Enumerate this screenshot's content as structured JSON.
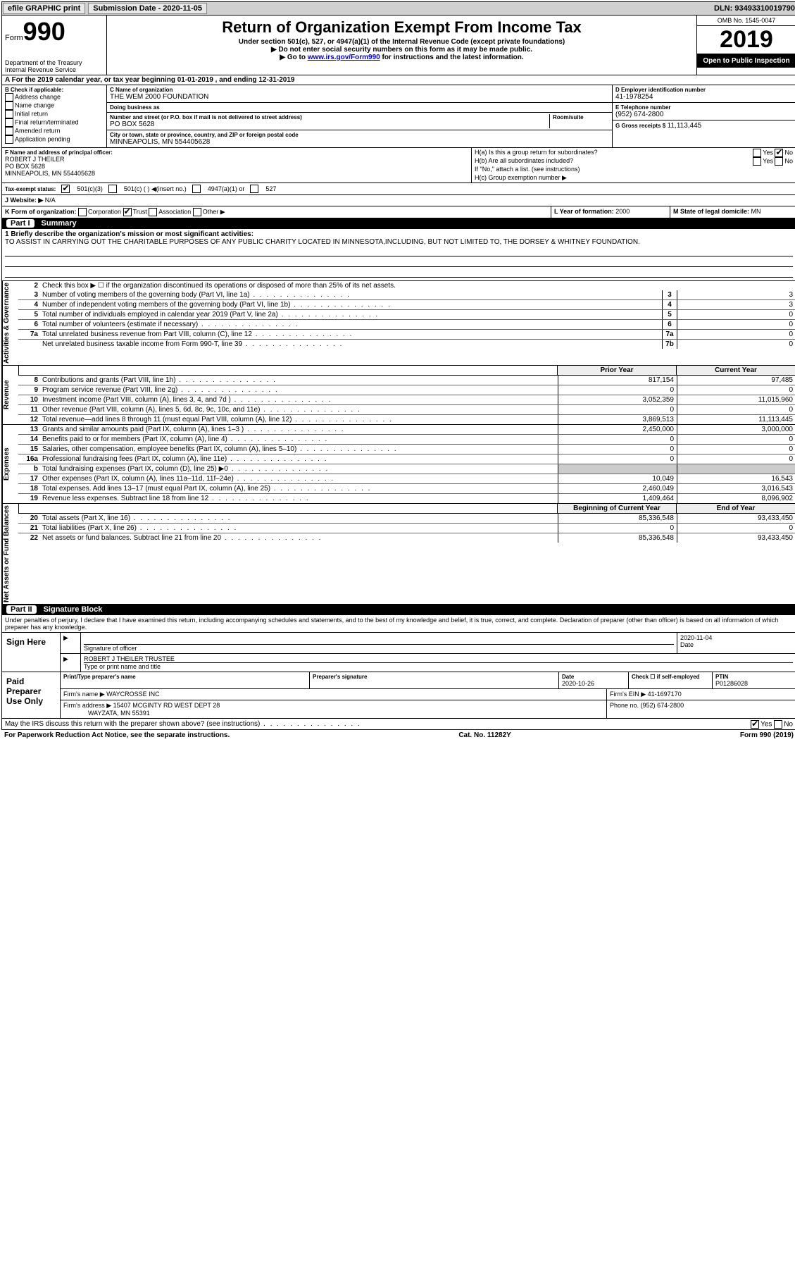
{
  "topbar": {
    "efile": "efile GRAPHIC print",
    "sub_label": "Submission Date - 2020-11-05",
    "dln": "DLN: 93493310019790"
  },
  "header": {
    "form_word": "Form",
    "form_num": "990",
    "dept1": "Department of the Treasury",
    "dept2": "Internal Revenue Service",
    "title": "Return of Organization Exempt From Income Tax",
    "sub1": "Under section 501(c), 527, or 4947(a)(1) of the Internal Revenue Code (except private foundations)",
    "sub2": "▶ Do not enter social security numbers on this form as it may be made public.",
    "sub3a": "▶ Go to ",
    "sub3_link": "www.irs.gov/Form990",
    "sub3b": " for instructions and the latest information.",
    "omb": "OMB No. 1545-0047",
    "year": "2019",
    "opi": "Open to Public Inspection"
  },
  "A": {
    "text": "A For the 2019 calendar year, or tax year beginning 01-01-2019    , and ending 12-31-2019"
  },
  "B": {
    "label": "B Check if applicable:",
    "items": [
      "Address change",
      "Name change",
      "Initial return",
      "Final return/terminated",
      "Amended return",
      "Application pending"
    ]
  },
  "C": {
    "name_label": "C Name of organization",
    "name": "THE WEM 2000 FOUNDATION",
    "dba_label": "Doing business as",
    "dba": "",
    "street_label": "Number and street (or P.O. box if mail is not delivered to street address)",
    "room_label": "Room/suite",
    "street": "PO BOX 5628",
    "city_label": "City or town, state or province, country, and ZIP or foreign postal code",
    "city": "MINNEAPOLIS, MN  554405628"
  },
  "D": {
    "ein_label": "D Employer identification number",
    "ein": "41-1978254",
    "phone_label": "E Telephone number",
    "phone": "(952) 674-2800",
    "gross_label": "G Gross receipts $",
    "gross": "11,113,445"
  },
  "F": {
    "label": "F  Name and address of principal officer:",
    "line1": "ROBERT J THEILER",
    "line2": "PO BOX 5628",
    "line3": "MINNEAPOLIS, MN  554405628"
  },
  "H": {
    "a": "H(a)  Is this a group return for subordinates?",
    "a_yes": "Yes",
    "a_no": "No",
    "b": "H(b)  Are all subordinates included?",
    "b_yes": "Yes",
    "b_no": "No",
    "b_note": "If \"No,\" attach a list. (see instructions)",
    "c": "H(c)  Group exemption number ▶"
  },
  "I": {
    "label": "Tax-exempt status:",
    "o1": "501(c)(3)",
    "o2": "501(c) (  ) ◀(insert no.)",
    "o3": "4947(a)(1) or",
    "o4": "527"
  },
  "J": {
    "label": "J  Website: ▶",
    "val": "N/A"
  },
  "K": {
    "label": "K Form of organization:",
    "o1": "Corporation",
    "o2": "Trust",
    "o3": "Association",
    "o4": "Other ▶"
  },
  "L": {
    "label": "L Year of formation:",
    "val": "2000"
  },
  "M": {
    "label": "M State of legal domicile:",
    "val": "MN"
  },
  "part1": {
    "badge": "Part I",
    "title": "Summary"
  },
  "mission": {
    "q": "1  Briefly describe the organization's mission or most significant activities:",
    "text": "TO ASSIST IN CARRYING OUT THE CHARITABLE PURPOSES OF ANY PUBLIC CHARITY LOCATED IN MINNESOTA,INCLUDING, BUT NOT LIMITED TO, THE DORSEY & WHITNEY FOUNDATION."
  },
  "gov": {
    "l2": "Check this box ▶ ☐  if the organization discontinued its operations or disposed of more than 25% of its net assets.",
    "rows": [
      {
        "n": "3",
        "t": "Number of voting members of the governing body (Part VI, line 1a)",
        "b": "3",
        "v": "3"
      },
      {
        "n": "4",
        "t": "Number of independent voting members of the governing body (Part VI, line 1b)",
        "b": "4",
        "v": "3"
      },
      {
        "n": "5",
        "t": "Total number of individuals employed in calendar year 2019 (Part V, line 2a)",
        "b": "5",
        "v": "0"
      },
      {
        "n": "6",
        "t": "Total number of volunteers (estimate if necessary)",
        "b": "6",
        "v": "0"
      },
      {
        "n": "7a",
        "t": "Total unrelated business revenue from Part VIII, column (C), line 12",
        "b": "7a",
        "v": "0"
      },
      {
        "n": "",
        "t": "Net unrelated business taxable income from Form 990-T, line 39",
        "b": "7b",
        "v": "0"
      }
    ]
  },
  "colhdr": {
    "prior": "Prior Year",
    "curr": "Current Year"
  },
  "rev": {
    "rows": [
      {
        "n": "8",
        "t": "Contributions and grants (Part VIII, line 1h)",
        "p": "817,154",
        "c": "97,485"
      },
      {
        "n": "9",
        "t": "Program service revenue (Part VIII, line 2g)",
        "p": "0",
        "c": "0"
      },
      {
        "n": "10",
        "t": "Investment income (Part VIII, column (A), lines 3, 4, and 7d )",
        "p": "3,052,359",
        "c": "11,015,960"
      },
      {
        "n": "11",
        "t": "Other revenue (Part VIII, column (A), lines 5, 6d, 8c, 9c, 10c, and 11e)",
        "p": "0",
        "c": "0"
      },
      {
        "n": "12",
        "t": "Total revenue—add lines 8 through 11 (must equal Part VIII, column (A), line 12)",
        "p": "3,869,513",
        "c": "11,113,445"
      }
    ]
  },
  "exp": {
    "rows": [
      {
        "n": "13",
        "t": "Grants and similar amounts paid (Part IX, column (A), lines 1–3 )",
        "p": "2,450,000",
        "c": "3,000,000"
      },
      {
        "n": "14",
        "t": "Benefits paid to or for members (Part IX, column (A), line 4)",
        "p": "0",
        "c": "0"
      },
      {
        "n": "15",
        "t": "Salaries, other compensation, employee benefits (Part IX, column (A), lines 5–10)",
        "p": "0",
        "c": "0"
      },
      {
        "n": "16a",
        "t": "Professional fundraising fees (Part IX, column (A), line 11e)",
        "p": "0",
        "c": "0"
      },
      {
        "n": "b",
        "t": "Total fundraising expenses (Part IX, column (D), line 25) ▶0",
        "p": "",
        "c": "",
        "grey": true
      },
      {
        "n": "17",
        "t": "Other expenses (Part IX, column (A), lines 11a–11d, 11f–24e)",
        "p": "10,049",
        "c": "16,543"
      },
      {
        "n": "18",
        "t": "Total expenses. Add lines 13–17 (must equal Part IX, column (A), line 25)",
        "p": "2,460,049",
        "c": "3,016,543"
      },
      {
        "n": "19",
        "t": "Revenue less expenses. Subtract line 18 from line 12",
        "p": "1,409,464",
        "c": "8,096,902"
      }
    ]
  },
  "net": {
    "hdr1": "Beginning of Current Year",
    "hdr2": "End of Year",
    "rows": [
      {
        "n": "20",
        "t": "Total assets (Part X, line 16)",
        "p": "85,336,548",
        "c": "93,433,450"
      },
      {
        "n": "21",
        "t": "Total liabilities (Part X, line 26)",
        "p": "0",
        "c": "0"
      },
      {
        "n": "22",
        "t": "Net assets or fund balances. Subtract line 21 from line 20",
        "p": "85,336,548",
        "c": "93,433,450"
      }
    ]
  },
  "part2": {
    "badge": "Part II",
    "title": "Signature Block"
  },
  "sigtext": "Under penalties of perjury, I declare that I have examined this return, including accompanying schedules and statements, and to the best of my knowledge and belief, it is true, correct, and complete. Declaration of preparer (other than officer) is based on all information of which preparer has any knowledge.",
  "sign": {
    "here": "Sign Here",
    "sig_label": "Signature of officer",
    "date": "2020-11-04",
    "date_label": "Date",
    "name": "ROBERT J THEILER  TRUSTEE",
    "name_label": "Type or print name and title"
  },
  "prep": {
    "here": "Paid Preparer Use Only",
    "h1": "Print/Type preparer's name",
    "h2": "Preparer's signature",
    "h3": "Date",
    "h3v": "2020-10-26",
    "h4": "Check ☐ if self-employed",
    "h5": "PTIN",
    "h5v": "P01286028",
    "firm_l": "Firm's name    ▶",
    "firm": "WAYCROSSE INC",
    "ein_l": "Firm's EIN ▶",
    "ein": "41-1697170",
    "addr_l": "Firm's address ▶",
    "addr1": "15407 MCGINTY RD WEST DEPT 28",
    "addr2": "WAYZATA, MN  55391",
    "phone_l": "Phone no.",
    "phone": "(952) 674-2800"
  },
  "discuss": "May the IRS discuss this return with the preparer shown above? (see instructions)",
  "discuss_yes": "Yes",
  "discuss_no": "No",
  "footer": {
    "l": "For Paperwork Reduction Act Notice, see the separate instructions.",
    "m": "Cat. No. 11282Y",
    "r": "Form 990 (2019)"
  },
  "colors": {
    "link": "#0000cc",
    "topbar": "#d0d0d0",
    "black": "#000000",
    "grey": "#cccccc"
  }
}
